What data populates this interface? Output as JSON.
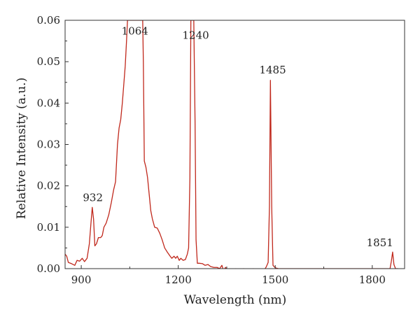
{
  "chart_data": {
    "type": "line",
    "title": "",
    "xlabel": "Wavelength (nm)",
    "ylabel": "Relative Intensity (a.u.)",
    "xlim": [
      850,
      1900
    ],
    "ylim": [
      0,
      0.06
    ],
    "x_ticks": [
      900,
      1200,
      1500,
      1800
    ],
    "x_tick_labels": [
      "900",
      "1200",
      "1500",
      "1800"
    ],
    "y_ticks": [
      0,
      0.01,
      0.02,
      0.03,
      0.04,
      0.05,
      0.06
    ],
    "y_tick_labels": [
      "0.00",
      "0.01",
      "0.02",
      "0.03",
      "0.04",
      "0.05",
      "0.06"
    ],
    "grid": false,
    "line_color": "#c0281c",
    "series": [
      {
        "points": [
          [
            850,
            0.0035
          ],
          [
            855,
            0.003
          ],
          [
            860,
            0.0015
          ],
          [
            870,
            0.0012
          ],
          [
            880,
            0.0008
          ],
          [
            887,
            0.002
          ],
          [
            895,
            0.0018
          ],
          [
            903,
            0.0025
          ],
          [
            910,
            0.0017
          ],
          [
            918,
            0.0025
          ],
          [
            925,
            0.006
          ],
          [
            930,
            0.011
          ],
          [
            934,
            0.0148
          ],
          [
            938,
            0.012
          ],
          [
            942,
            0.0055
          ],
          [
            947,
            0.006
          ],
          [
            953,
            0.0075
          ],
          [
            960,
            0.0075
          ],
          [
            965,
            0.008
          ],
          [
            970,
            0.01
          ],
          [
            977,
            0.011
          ],
          [
            985,
            0.013
          ],
          [
            993,
            0.016
          ],
          [
            1000,
            0.019
          ],
          [
            1006,
            0.021
          ],
          [
            1012,
            0.03
          ],
          [
            1017,
            0.034
          ],
          [
            1022,
            0.036
          ],
          [
            1027,
            0.04
          ],
          [
            1032,
            0.045
          ],
          [
            1036,
            0.049
          ],
          [
            1040,
            0.055
          ],
          [
            1043,
            0.06
          ],
          [
            1046,
            0.06
          ],
          [
            1090,
            0.06
          ],
          [
            1092,
            0.05
          ],
          [
            1095,
            0.026
          ],
          [
            1100,
            0.0245
          ],
          [
            1105,
            0.022
          ],
          [
            1110,
            0.018
          ],
          [
            1115,
            0.014
          ],
          [
            1120,
            0.012
          ],
          [
            1127,
            0.01
          ],
          [
            1135,
            0.0098
          ],
          [
            1143,
            0.0085
          ],
          [
            1150,
            0.007
          ],
          [
            1158,
            0.005
          ],
          [
            1166,
            0.004
          ],
          [
            1175,
            0.003
          ],
          [
            1180,
            0.0025
          ],
          [
            1187,
            0.003
          ],
          [
            1192,
            0.0025
          ],
          [
            1197,
            0.003
          ],
          [
            1203,
            0.002
          ],
          [
            1208,
            0.0025
          ],
          [
            1215,
            0.002
          ],
          [
            1222,
            0.0022
          ],
          [
            1228,
            0.0035
          ],
          [
            1232,
            0.005
          ],
          [
            1236,
            0.022
          ],
          [
            1239,
            0.06
          ],
          [
            1248,
            0.06
          ],
          [
            1252,
            0.035
          ],
          [
            1255,
            0.007
          ],
          [
            1259,
            0.0013
          ],
          [
            1265,
            0.0013
          ],
          [
            1275,
            0.0012
          ],
          [
            1283,
            0.0008
          ],
          [
            1292,
            0.001
          ],
          [
            1300,
            0.0005
          ],
          [
            1310,
            0.0003
          ],
          [
            1320,
            0.0003
          ],
          [
            1328,
            0.0
          ],
          [
            1335,
            0.0008
          ],
          [
            1340,
            -0.0005
          ],
          [
            1346,
            0.0003
          ],
          [
            1352,
            -0.0003
          ],
          [
            1358,
            0.0
          ],
          [
            1364,
            -0.0007
          ],
          [
            1370,
            -0.0005
          ],
          [
            1378,
            0.0
          ],
          [
            1386,
            -0.0004
          ],
          [
            1394,
            -0.0002
          ],
          [
            1402,
            0.0
          ],
          [
            1410,
            -0.0002
          ],
          [
            1418,
            -0.0003
          ],
          [
            1425,
            -0.0006
          ],
          [
            1432,
            0.0
          ],
          [
            1438,
            -0.0002
          ],
          [
            1444,
            -0.0006
          ],
          [
            1452,
            -0.0002
          ],
          [
            1460,
            -0.0004
          ],
          [
            1466,
            -0.0003
          ],
          [
            1472,
            0.0004
          ],
          [
            1478,
            0.0015
          ],
          [
            1482,
            0.015
          ],
          [
            1485,
            0.0455
          ],
          [
            1489,
            0.015
          ],
          [
            1493,
            0.0008
          ],
          [
            1500,
            0.0002
          ],
          [
            1510,
            0.0
          ],
          [
            1855,
            0.0
          ],
          [
            1859,
            0.0018
          ],
          [
            1863,
            0.004
          ],
          [
            1867,
            0.001
          ],
          [
            1872,
            0.0
          ],
          [
            1880,
            0.0
          ]
        ]
      }
    ],
    "annotations": [
      {
        "text": "932",
        "x": 936,
        "y": 0.0153,
        "anchor": "middle"
      },
      {
        "text": "1064",
        "x": 1066,
        "y": 0.0555,
        "anchor": "middle"
      },
      {
        "text": "1240",
        "x": 1254,
        "y": 0.0545,
        "anchor": "middle"
      },
      {
        "text": "1485",
        "x": 1492,
        "y": 0.0461,
        "anchor": "middle"
      },
      {
        "text": "1851",
        "x": 1865,
        "y": 0.0044,
        "anchor": "end"
      }
    ]
  }
}
